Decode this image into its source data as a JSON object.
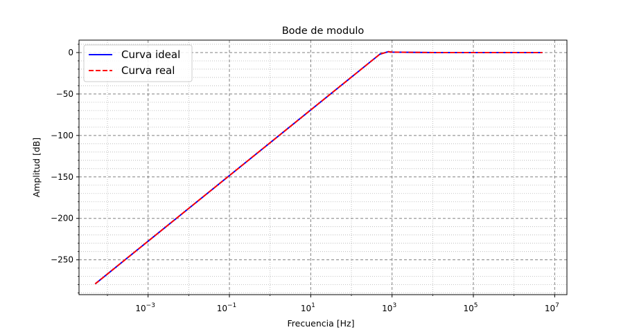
{
  "chart_data": {
    "type": "line",
    "title": "Bode de modulo",
    "xlabel": "Frecuencia [Hz]",
    "ylabel": "Amplitud [dB]",
    "xscale": "log",
    "xlim": [
      2e-05,
      20000000
    ],
    "ylim": [
      -292,
      15
    ],
    "x_ticks": [
      {
        "value": 0.001,
        "base": "10",
        "exp": "−3"
      },
      {
        "value": 0.1,
        "base": "10",
        "exp": "−1"
      },
      {
        "value": 10,
        "base": "10",
        "exp": "1"
      },
      {
        "value": 1000,
        "base": "10",
        "exp": "3"
      },
      {
        "value": 100000,
        "base": "10",
        "exp": "5"
      },
      {
        "value": 10000000,
        "base": "10",
        "exp": "7"
      }
    ],
    "y_ticks": [
      {
        "value": 0,
        "label": "0"
      },
      {
        "value": -50,
        "label": "−50"
      },
      {
        "value": -100,
        "label": "−100"
      },
      {
        "value": -150,
        "label": "−150"
      },
      {
        "value": -200,
        "label": "−200"
      },
      {
        "value": -250,
        "label": "−250"
      }
    ],
    "grid": {
      "major": true,
      "minor": true
    },
    "legend": {
      "placement": "top-left"
    },
    "series": [
      {
        "name": "Curva ideal",
        "color": "#0000ff",
        "style": "solid",
        "x": [
          5e-05,
          500,
          800,
          1000,
          10000,
          100000,
          1000000,
          5000000
        ],
        "y": [
          -279,
          -2,
          1,
          0.5,
          0,
          0,
          0,
          0
        ]
      },
      {
        "name": "Curva real",
        "color": "#ff0000",
        "style": "dashed",
        "x": [
          5e-05,
          500,
          800,
          1000,
          10000,
          100000,
          1000000,
          5000000
        ],
        "y": [
          -279,
          -2,
          1,
          0.5,
          0,
          0,
          0,
          0
        ]
      }
    ]
  }
}
